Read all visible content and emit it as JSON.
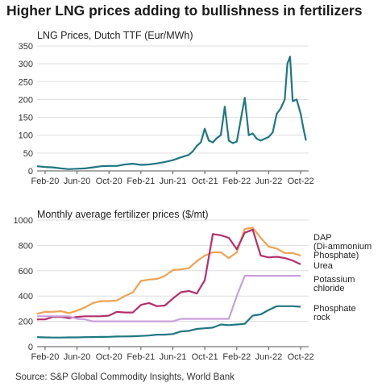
{
  "title": "Higher LNG prices adding to bullishness in fertilizers",
  "source": "Source: S&P Global Commodity Insights, World Bank",
  "colors": {
    "lng": "#1f7782",
    "dap": "#f0a251",
    "urea": "#b3306b",
    "potash": "#c9a0dc",
    "phosphate": "#1f7782"
  },
  "chart_data": [
    {
      "type": "line",
      "subtitle": "LNG Prices, Dutch TTF (Eur/MWh)",
      "ylim": [
        0,
        350
      ],
      "yticks": [
        0,
        50,
        100,
        150,
        200,
        250,
        300,
        350
      ],
      "xticks": [
        "Feb-20",
        "Jun-20",
        "Oct-20",
        "Feb-21",
        "Jun-21",
        "Oct-21",
        "Feb-22",
        "Jun-22",
        "Oct-22"
      ],
      "xlim": [
        "2020-01",
        "2022-11"
      ],
      "grid": true,
      "series": [
        {
          "x": [
            "2020-01",
            "2020-02",
            "2020-03",
            "2020-04",
            "2020-05",
            "2020-06",
            "2020-07",
            "2020-08",
            "2020-09",
            "2020-10",
            "2020-11",
            "2020-12",
            "2021-01",
            "2021-02",
            "2021-03",
            "2021-04",
            "2021-05",
            "2021-06",
            "2021-07",
            "2021-08",
            "2021-08",
            "2021-09",
            "2021-09",
            "2021-10",
            "2021-10",
            "2021-11",
            "2021-11",
            "2021-12",
            "2021-12",
            "2022-01",
            "2022-01",
            "2022-02",
            "2022-03",
            "2022-03",
            "2022-04",
            "2022-04",
            "2022-05",
            "2022-06",
            "2022-06",
            "2022-07",
            "2022-07",
            "2022-08",
            "2022-08",
            "2022-08",
            "2022-09",
            "2022-09",
            "2022-10",
            "2022-10",
            "2022-10"
          ],
          "values": [
            13,
            11,
            10,
            7,
            5,
            6,
            7,
            10,
            13,
            14,
            14,
            18,
            20,
            17,
            18,
            21,
            25,
            30,
            38,
            45,
            55,
            70,
            80,
            118,
            85,
            80,
            92,
            100,
            180,
            85,
            78,
            82,
            205,
            100,
            105,
            90,
            85,
            95,
            108,
            160,
            175,
            200,
            300,
            320,
            195,
            200,
            160,
            120,
            85
          ]
        }
      ]
    },
    {
      "type": "line",
      "subtitle": "Monthly average fertilizer prices ($/mt)",
      "ylim": [
        0,
        1000
      ],
      "yticks": [
        0,
        200,
        400,
        600,
        800,
        1000
      ],
      "xticks": [
        "Feb-20",
        "Jun-20",
        "Oct-20",
        "Feb-21",
        "Jun-21",
        "Oct-21",
        "Feb-22",
        "Jun-22",
        "Oct-22"
      ],
      "xlim": [
        "2020-01",
        "2022-11"
      ],
      "grid": true,
      "series": [
        {
          "name": "DAP (Di-ammonium Phosphate)",
          "legend_lines": [
            "DAP",
            "(Di-ammonium",
            "Phosphate)"
          ],
          "x": [
            "2020-01",
            "2020-02",
            "2020-03",
            "2020-04",
            "2020-05",
            "2020-06",
            "2020-07",
            "2020-08",
            "2020-09",
            "2020-10",
            "2020-11",
            "2020-12",
            "2021-01",
            "2021-02",
            "2021-03",
            "2021-04",
            "2021-05",
            "2021-06",
            "2021-07",
            "2021-08",
            "2021-09",
            "2021-10",
            "2021-11",
            "2021-12",
            "2022-01",
            "2022-02",
            "2022-03",
            "2022-04",
            "2022-05",
            "2022-06",
            "2022-07",
            "2022-08",
            "2022-09",
            "2022-10"
          ],
          "values": [
            260,
            275,
            275,
            280,
            265,
            285,
            310,
            345,
            360,
            360,
            365,
            400,
            430,
            520,
            530,
            535,
            560,
            605,
            610,
            620,
            675,
            720,
            745,
            745,
            700,
            745,
            930,
            940,
            860,
            790,
            775,
            740,
            740,
            720
          ]
        },
        {
          "name": "Urea",
          "legend_lines": [
            "Urea"
          ],
          "x": [
            "2020-01",
            "2020-02",
            "2020-03",
            "2020-04",
            "2020-05",
            "2020-06",
            "2020-07",
            "2020-08",
            "2020-09",
            "2020-10",
            "2020-11",
            "2020-12",
            "2021-01",
            "2021-02",
            "2021-03",
            "2021-04",
            "2021-05",
            "2021-06",
            "2021-07",
            "2021-08",
            "2021-09",
            "2021-10",
            "2021-11",
            "2021-12",
            "2022-01",
            "2022-02",
            "2022-03",
            "2022-04",
            "2022-05",
            "2022-06",
            "2022-07",
            "2022-08",
            "2022-09",
            "2022-10"
          ],
          "values": [
            215,
            215,
            235,
            235,
            225,
            235,
            240,
            240,
            240,
            245,
            275,
            270,
            270,
            330,
            345,
            320,
            325,
            380,
            430,
            440,
            420,
            525,
            890,
            880,
            860,
            770,
            900,
            925,
            720,
            705,
            710,
            700,
            680,
            650
          ]
        },
        {
          "name": "Potassium chloride",
          "legend_lines": [
            "Potassium",
            "chloride"
          ],
          "x": [
            "2020-01",
            "2020-02",
            "2020-03",
            "2020-04",
            "2020-05",
            "2020-06",
            "2020-07",
            "2020-08",
            "2020-09",
            "2020-10",
            "2020-11",
            "2020-12",
            "2021-01",
            "2021-02",
            "2021-03",
            "2021-04",
            "2021-05",
            "2021-06",
            "2021-07",
            "2021-08",
            "2021-09",
            "2021-10",
            "2021-11",
            "2021-12",
            "2022-01",
            "2022-02",
            "2022-03",
            "2022-04",
            "2022-05",
            "2022-06",
            "2022-07",
            "2022-08",
            "2022-09",
            "2022-10"
          ],
          "values": [
            240,
            240,
            240,
            240,
            240,
            220,
            215,
            200,
            200,
            200,
            200,
            200,
            200,
            200,
            200,
            200,
            200,
            200,
            220,
            220,
            220,
            220,
            220,
            220,
            220,
            400,
            560,
            560,
            560,
            560,
            560,
            560,
            560,
            560
          ]
        },
        {
          "name": "Phosphate rock",
          "legend_lines": [
            "Phosphate",
            "rock"
          ],
          "x": [
            "2020-01",
            "2020-02",
            "2020-03",
            "2020-04",
            "2020-05",
            "2020-06",
            "2020-07",
            "2020-08",
            "2020-09",
            "2020-10",
            "2020-11",
            "2020-12",
            "2021-01",
            "2021-02",
            "2021-03",
            "2021-04",
            "2021-05",
            "2021-06",
            "2021-07",
            "2021-08",
            "2021-09",
            "2021-10",
            "2021-11",
            "2021-12",
            "2022-01",
            "2022-02",
            "2022-03",
            "2022-04",
            "2022-05",
            "2022-06",
            "2022-07",
            "2022-08",
            "2022-09",
            "2022-10"
          ],
          "values": [
            75,
            73,
            72,
            72,
            73,
            73,
            75,
            76,
            77,
            78,
            80,
            81,
            82,
            85,
            88,
            95,
            95,
            100,
            120,
            125,
            140,
            145,
            150,
            175,
            170,
            175,
            180,
            245,
            255,
            290,
            320,
            320,
            320,
            315
          ]
        }
      ]
    }
  ]
}
